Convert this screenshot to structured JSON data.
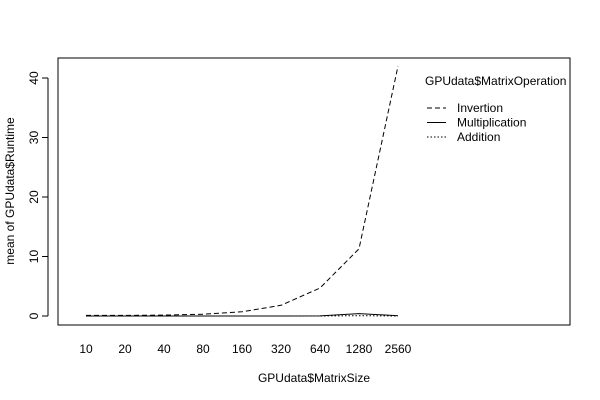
{
  "chart_data": {
    "type": "line",
    "xlabel": "GPUdata$MatrixSize",
    "ylabel": "mean of GPUdata$Runtime",
    "categories": [
      "10",
      "20",
      "40",
      "80",
      "160",
      "320",
      "640",
      "1280",
      "2560"
    ],
    "ylim": [
      0,
      42
    ],
    "yticks": [
      0,
      10,
      20,
      30,
      40
    ],
    "grid": false,
    "legend": {
      "title": "GPUdata$MatrixOperation",
      "placement": "top-right",
      "entries": [
        "Invertion",
        "Multiplication",
        "Addition"
      ]
    },
    "series": [
      {
        "name": "Invertion",
        "line_style": "dashed",
        "values": [
          0.1,
          0.1,
          0.15,
          0.3,
          0.7,
          1.8,
          4.7,
          11.3,
          42
        ]
      },
      {
        "name": "Multiplication",
        "line_style": "solid",
        "values": [
          0.0,
          0.0,
          0.0,
          0.0,
          0.0,
          0.0,
          0.02,
          0.4,
          0.05
        ]
      },
      {
        "name": "Addition",
        "line_style": "dotted",
        "values": [
          0.0,
          0.0,
          0.0,
          0.0,
          0.0,
          0.0,
          0.0,
          0.05,
          0.0
        ]
      }
    ]
  }
}
